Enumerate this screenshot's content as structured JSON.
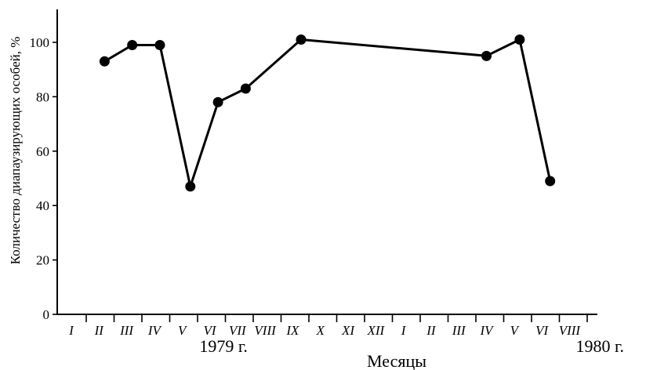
{
  "chart_data": {
    "type": "line",
    "xlabel": "Месяцы",
    "ylabel": "Количество диапаузирующих особей, %",
    "yticks": [
      0,
      20,
      40,
      60,
      80,
      100
    ],
    "ylim": [
      0,
      112
    ],
    "grid": false,
    "month_ticks": [
      "I",
      "II",
      "III",
      "IV",
      "V",
      "VI",
      "VII",
      "VIII",
      "IX",
      "X",
      "XI",
      "XII",
      "I",
      "II",
      "III",
      "IV",
      "V",
      "VI",
      "VIII"
    ],
    "year_labels": [
      {
        "text": "1979 г.",
        "month_index": 5.5
      },
      {
        "text": "1980 г.",
        "month_index": 19.1
      }
    ],
    "points": [
      {
        "x": 1.2,
        "y": 93
      },
      {
        "x": 2.2,
        "y": 99
      },
      {
        "x": 3.2,
        "y": 99
      },
      {
        "x": 4.3,
        "y": 47
      },
      {
        "x": 5.3,
        "y": 78
      },
      {
        "x": 6.3,
        "y": 83
      },
      {
        "x": 8.3,
        "y": 101
      },
      {
        "x": 15.0,
        "y": 95
      },
      {
        "x": 16.2,
        "y": 101
      },
      {
        "x": 17.3,
        "y": 49
      }
    ]
  }
}
